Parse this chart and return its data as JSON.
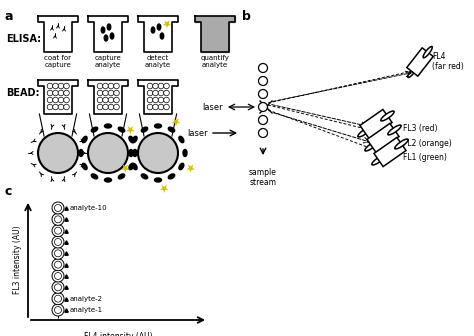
{
  "bg_color": "#ffffff",
  "label_a": "a",
  "label_b": "b",
  "label_c": "c",
  "elisa_label": "ELISA:",
  "bead_label": "BEAD:",
  "elisa_steps": [
    "coat for\ncapture",
    "capture\nanalyte",
    "detect\nanalyte",
    "quantify\nanalyte"
  ],
  "c_xlabel": "FL4 intensity (AU)",
  "c_ylabel": "FL3 intensity (AU)",
  "fl4_label": "FL4\n(far red)",
  "fl3_label": "FL3 (red)",
  "fl2_label": "FL2 (orange)",
  "fl1_label": "FL1 (green)",
  "laser_label": "laser",
  "sample_label": "sample\nstream",
  "analyte1_label": "analyte-1",
  "analyte2_label": "analyte-2",
  "analyte10_label": "analyte-10",
  "gold_color": "#d4c010",
  "gray_bead": "#c8c8c8",
  "dark_gray": "#888888",
  "black": "#000000",
  "well_fill": "#aaaaaa"
}
